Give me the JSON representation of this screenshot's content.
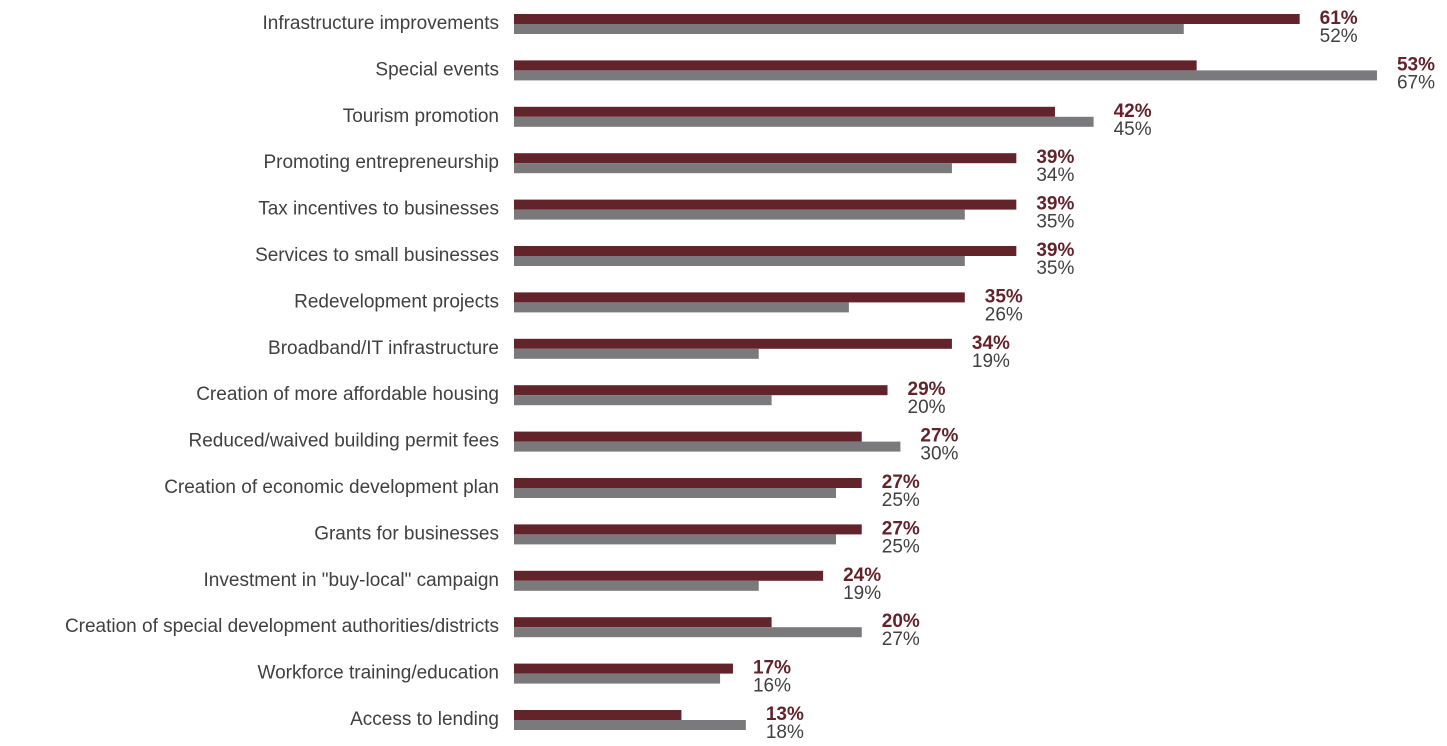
{
  "chart_data": {
    "type": "bar",
    "orientation": "horizontal",
    "title": "",
    "xlabel": "",
    "ylabel": "",
    "xlim": [
      0,
      67
    ],
    "grid": false,
    "categories": [
      "Infrastructure improvements",
      "Special events",
      "Tourism promotion",
      "Promoting entrepreneurship",
      "Tax incentives to businesses",
      "Services to small businesses",
      "Redevelopment projects",
      "Broadband/IT infrastructure",
      "Creation of more affordable housing",
      "Reduced/waived building permit fees",
      "Creation of economic development plan",
      "Grants for businesses",
      "Investment in \"buy-local\" campaign",
      "Creation of special development authorities/districts",
      "Workforce training/education",
      "Access to lending"
    ],
    "series": [
      {
        "color": "#62232b",
        "values": [
          61,
          53,
          42,
          39,
          39,
          39,
          35,
          34,
          29,
          27,
          27,
          27,
          24,
          20,
          17,
          13
        ],
        "labels": [
          "61%",
          "53%",
          "42%",
          "39%",
          "39%",
          "39%",
          "35%",
          "34%",
          "29%",
          "27%",
          "27%",
          "27%",
          "24%",
          "20%",
          "17%",
          "13%"
        ]
      },
      {
        "color": "#7a7a7c",
        "values": [
          52,
          67,
          45,
          34,
          35,
          35,
          26,
          19,
          20,
          30,
          25,
          25,
          19,
          27,
          16,
          18
        ],
        "labels": [
          "52%",
          "67%",
          "45%",
          "34%",
          "35%",
          "35%",
          "26%",
          "19%",
          "20%",
          "30%",
          "25%",
          "25%",
          "19%",
          "27%",
          "16%",
          "18%"
        ]
      }
    ]
  }
}
